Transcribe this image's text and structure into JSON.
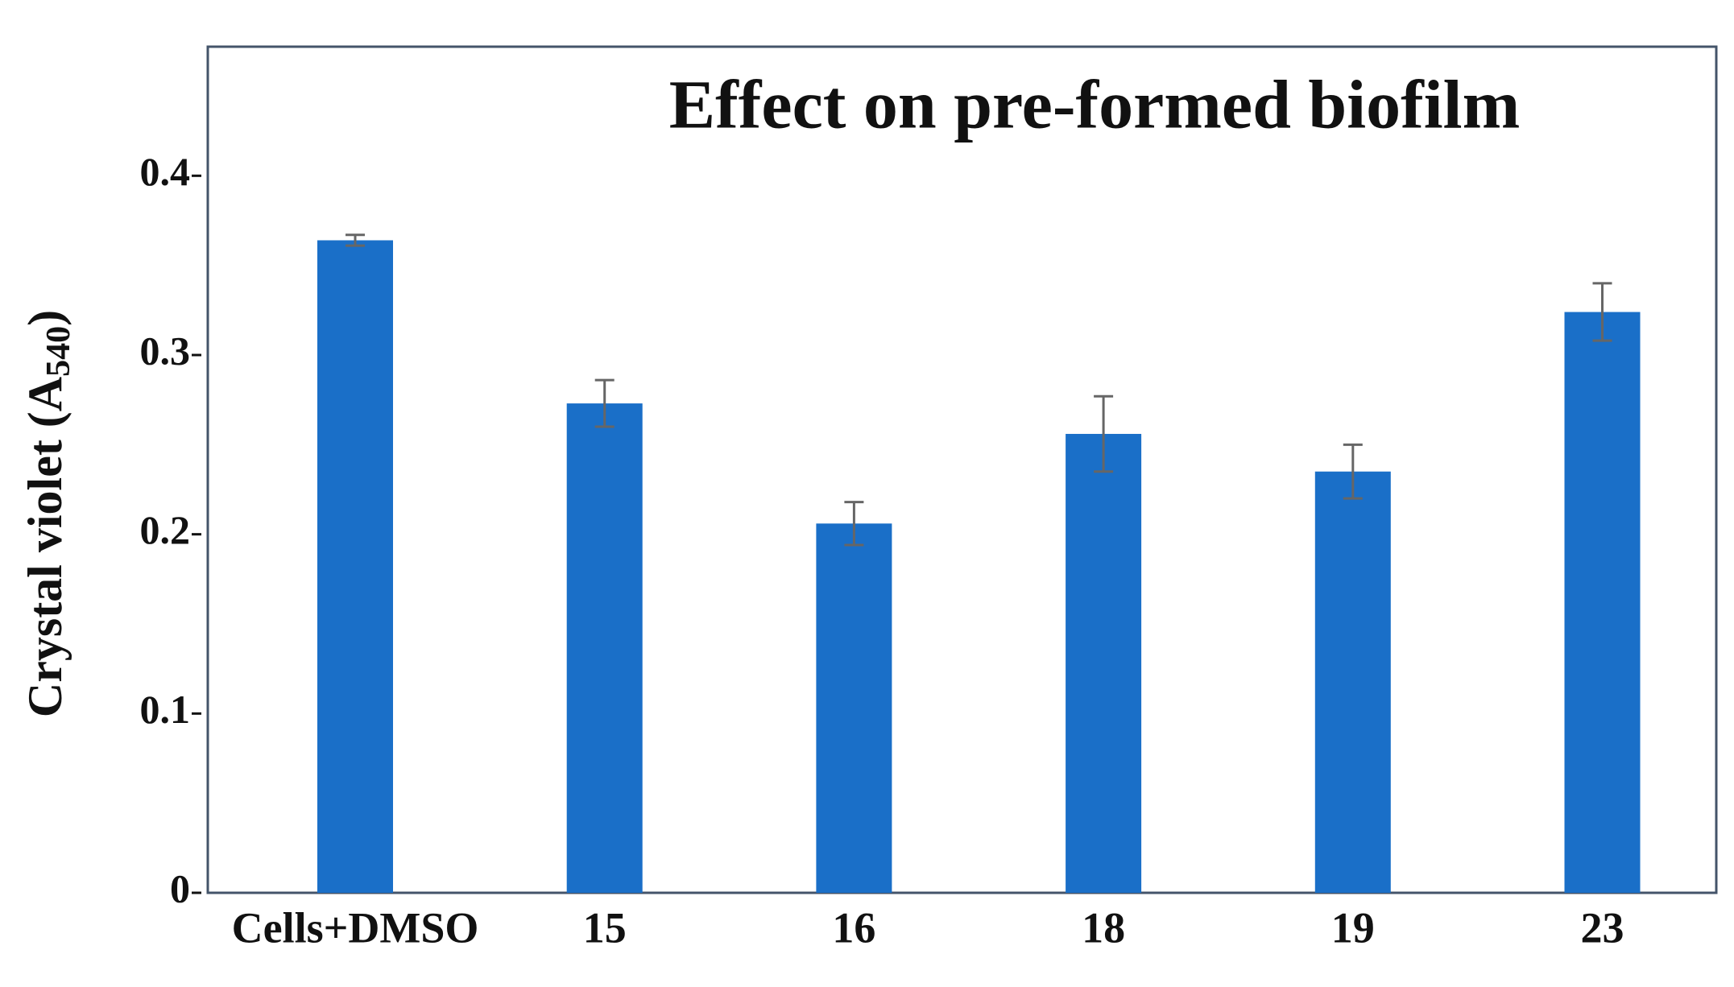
{
  "chart_data": {
    "type": "bar",
    "title": "Effect on pre-formed biofilm",
    "y_label": {
      "text": "Crystal violet (A",
      "subscript": "540",
      "suffix": ")"
    },
    "categories": [
      "Cells+DMSO",
      "15",
      "16",
      "18",
      "19",
      "23"
    ],
    "values": [
      0.364,
      0.273,
      0.206,
      0.256,
      0.235,
      0.324
    ],
    "errors": [
      0.003,
      0.013,
      0.012,
      0.021,
      0.015,
      0.016
    ],
    "color": "#1a6fc8",
    "error_color": "#666666",
    "ylim": [
      0,
      0.472
    ],
    "yticks": [
      0,
      0.1,
      0.2,
      0.3,
      0.4
    ],
    "grid": false
  }
}
